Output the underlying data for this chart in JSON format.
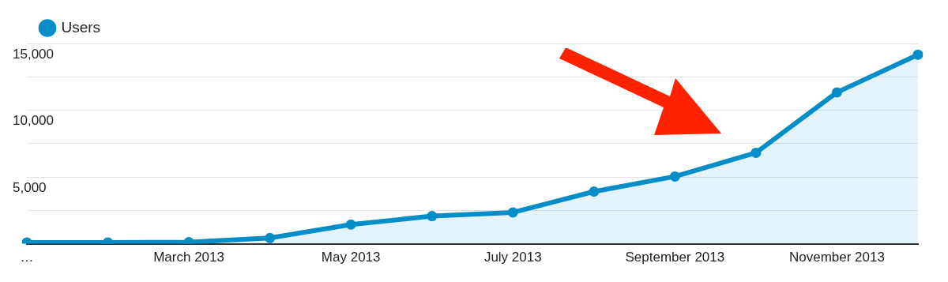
{
  "chart_data": {
    "type": "area",
    "categories": [
      "…",
      null,
      "March 2013",
      null,
      "May 2013",
      null,
      "July 2013",
      null,
      "September 2013",
      null,
      "November 2013",
      null
    ],
    "series": [
      {
        "name": "Users",
        "color": "#058dc7",
        "values": [
          100,
          100,
          120,
          430,
          1440,
          2070,
          2345,
          3910,
          5040,
          6810,
          11340,
          14160
        ]
      }
    ],
    "ylim": [
      0,
      15000
    ],
    "yticks": [
      {
        "value": 2500,
        "label": null
      },
      {
        "value": 5000,
        "label": "5,000"
      },
      {
        "value": 7500,
        "label": null
      },
      {
        "value": 10000,
        "label": "10,000"
      },
      {
        "value": 12500,
        "label": null
      },
      {
        "value": 15000,
        "label": "15,000"
      }
    ],
    "grid": "y",
    "legend": "top left",
    "marker": "circle",
    "line_style": "solid"
  }
}
